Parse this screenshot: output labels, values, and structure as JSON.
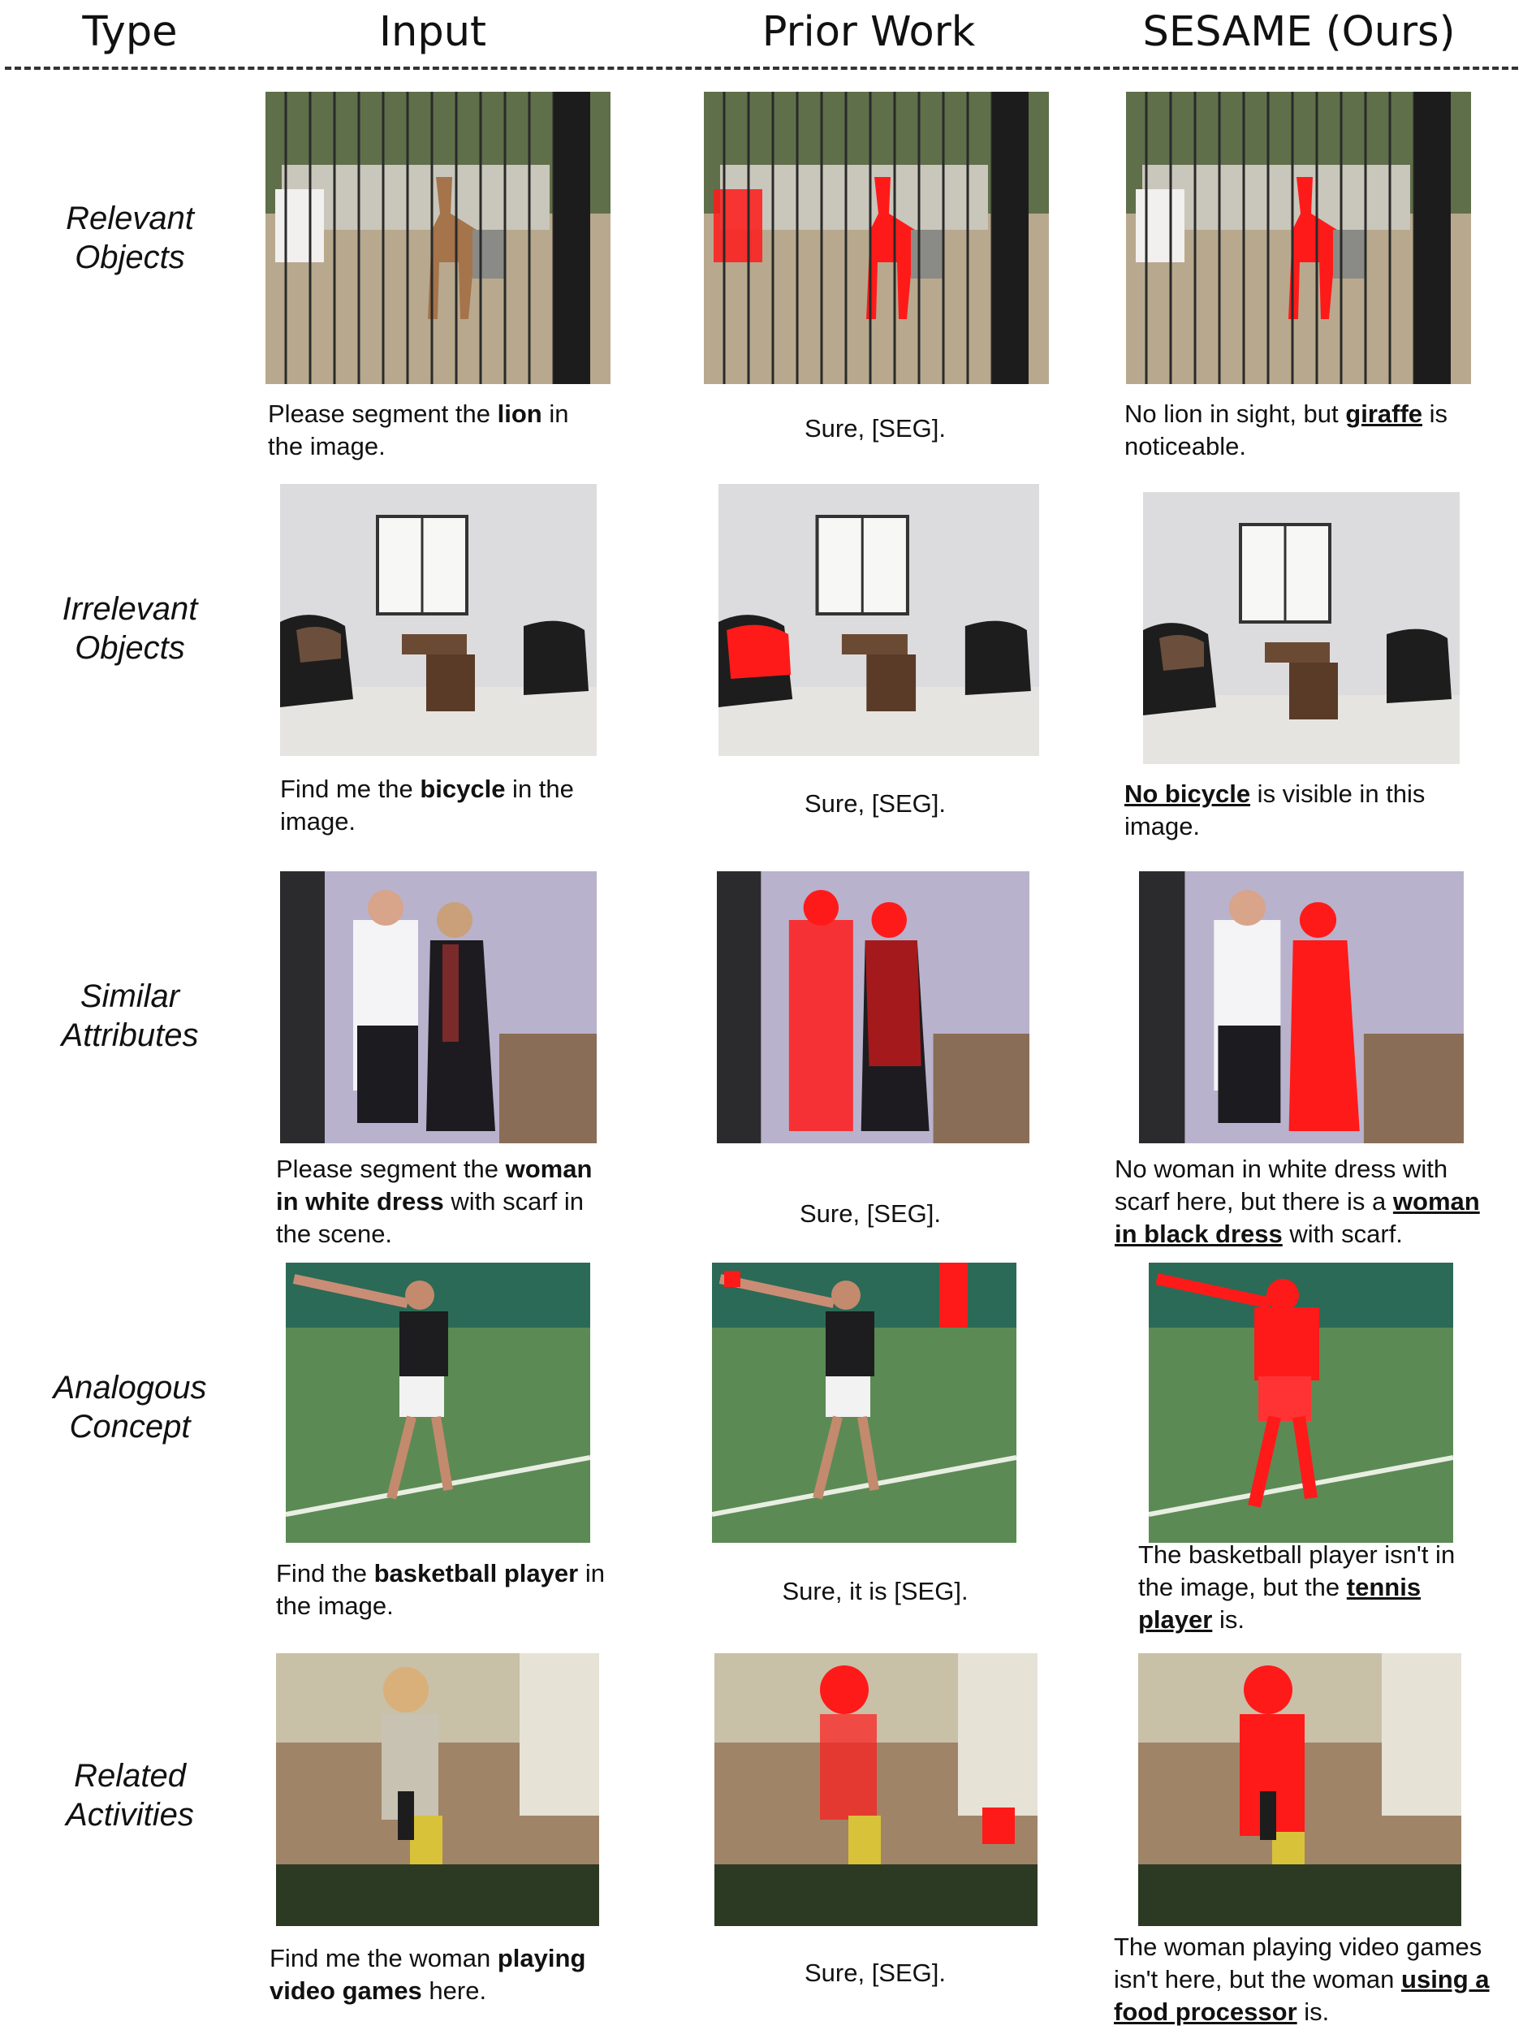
{
  "headers": {
    "type": "Type",
    "input": "Input",
    "prior": "Prior Work",
    "ours": "SESAME (Ours)"
  },
  "rows": [
    {
      "type_line1": "Relevant",
      "type_line2": "Objects",
      "input_caption": {
        "pre": "Please segment the ",
        "kw": "lion",
        "post": " in the image."
      },
      "prior_caption": "Sure, [SEG].",
      "ours_caption": {
        "pre": "No lion in sight, but ",
        "kw": "giraffe",
        "post": " is noticeable."
      }
    },
    {
      "type_line1": "Irrelevant",
      "type_line2": "Objects",
      "input_caption": {
        "pre": "Find me the ",
        "kw": "bicycle",
        "post": " in the image."
      },
      "prior_caption": "Sure, [SEG].",
      "ours_caption": {
        "pre": "",
        "kw": "No bicycle",
        "post": " is visible in this image."
      }
    },
    {
      "type_line1": "Similar",
      "type_line2": "Attributes",
      "input_caption": {
        "pre": "Please segment the ",
        "kw": "woman in white dress",
        "post": " with scarf in the scene."
      },
      "prior_caption": "Sure, [SEG].",
      "ours_caption": {
        "pre": "No woman in white dress with scarf here, but there is a ",
        "kw": "woman in black dress",
        "post": " with scarf."
      }
    },
    {
      "type_line1": "Analogous",
      "type_line2": "Concept",
      "input_caption": {
        "pre": "Find the ",
        "kw": "basketball player",
        "post": " in the image."
      },
      "prior_caption": "Sure, it is [SEG].",
      "ours_caption": {
        "pre": "The basketball player isn't in the image, but the ",
        "kw": "tennis player",
        "post": " is."
      }
    },
    {
      "type_line1": "Related",
      "type_line2": "Activities",
      "input_caption": {
        "pre": "Find me the woman ",
        "kw": "playing video games",
        "post": " here."
      },
      "prior_caption": "Sure, [SEG].",
      "ours_caption": {
        "pre": "The woman playing video games isn't here, but the woman ",
        "kw": "using a food processor",
        "post": " is."
      }
    }
  ],
  "colors": {
    "mask": "#ff1a1a",
    "text": "#111111"
  }
}
